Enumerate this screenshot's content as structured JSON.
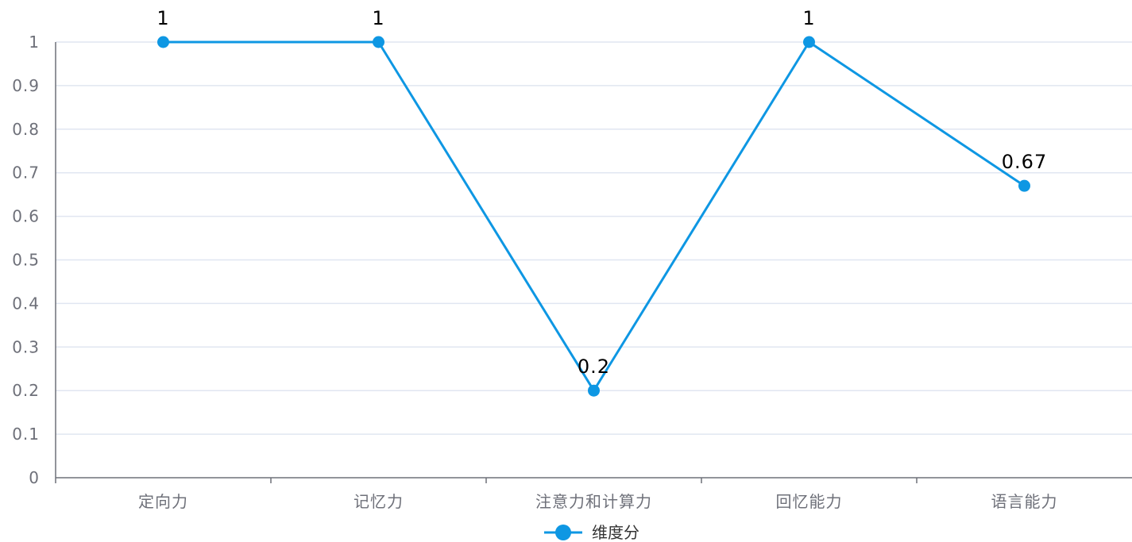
{
  "chart_data": {
    "type": "line",
    "categories": [
      "定向力",
      "记忆力",
      "注意力和计算力",
      "回忆能力",
      "语言能力"
    ],
    "series": [
      {
        "name": "维度分",
        "values": [
          1,
          1,
          0.2,
          1,
          0.67
        ],
        "color": "#0e97e3"
      }
    ],
    "data_labels": [
      "1",
      "1",
      "0.2",
      "1",
      "0.67"
    ],
    "y_ticks": [
      "0",
      "0.1",
      "0.2",
      "0.3",
      "0.4",
      "0.5",
      "0.6",
      "0.7",
      "0.8",
      "0.9",
      "1"
    ],
    "ylim": [
      0,
      1
    ],
    "grid": true,
    "legend_position": "bottom-center",
    "colors": {
      "grid": "#e0e6f1",
      "axis": "#6e7079",
      "axis_label": "#6e7079"
    }
  }
}
